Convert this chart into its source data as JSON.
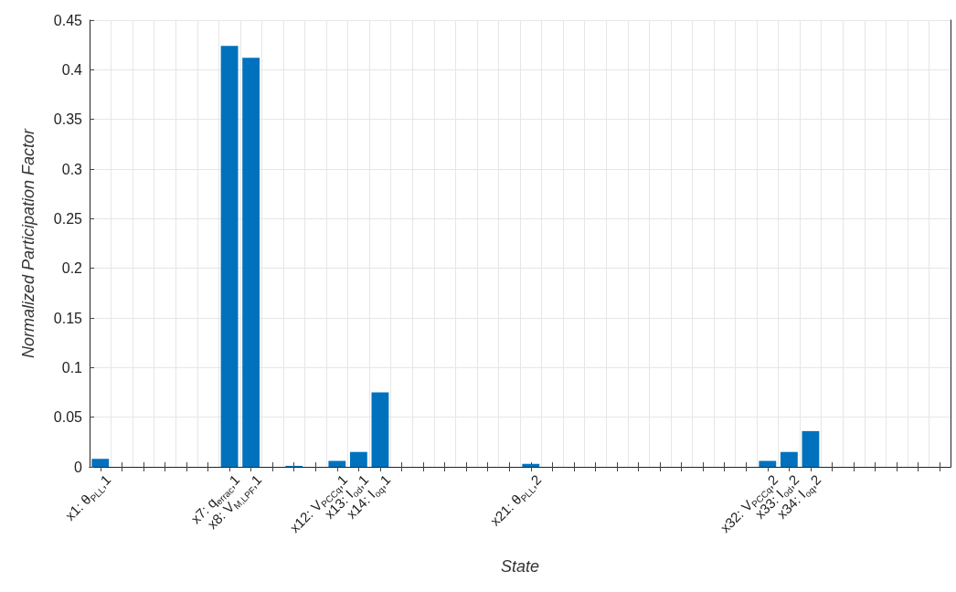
{
  "chart_data": {
    "type": "bar",
    "xlabel": "State",
    "ylabel": "Normalized Participation Factor",
    "categories": [
      "x1: θ$_{PLL}$,1",
      null,
      null,
      null,
      null,
      null,
      "x7: q$_{errac}$,1",
      "x8: V$_{M,LPF}$,1",
      null,
      null,
      null,
      "x12: V$_{PCCq}$,1",
      "x13: I$_{od}$,1",
      "x14: I$_{oq}$,1",
      null,
      null,
      null,
      null,
      null,
      null,
      "x21: θ$_{PLL}$,2",
      null,
      null,
      null,
      null,
      null,
      null,
      null,
      null,
      null,
      null,
      "x32: V$_{PCCq}$,2",
      "x33: I$_{od}$,2",
      "x34: I$_{oq}$,2",
      null,
      null,
      null,
      null,
      null,
      null
    ],
    "values": [
      0.008,
      0,
      0,
      0,
      0,
      0,
      0.424,
      0.412,
      0,
      0.001,
      0,
      0.006,
      0.015,
      0.075,
      0,
      0,
      0,
      0,
      0,
      0,
      0.003,
      0,
      0,
      0,
      0,
      0,
      0,
      0,
      0,
      0,
      0,
      0.006,
      0.015,
      0.036,
      0,
      0,
      0,
      0,
      0,
      0
    ],
    "color": "#0072bd",
    "ylim": [
      0,
      0.45
    ],
    "yticks": [
      0,
      0.05,
      0.1,
      0.15,
      0.2,
      0.25,
      0.3,
      0.35,
      0.4,
      0.45
    ],
    "grid": true
  }
}
